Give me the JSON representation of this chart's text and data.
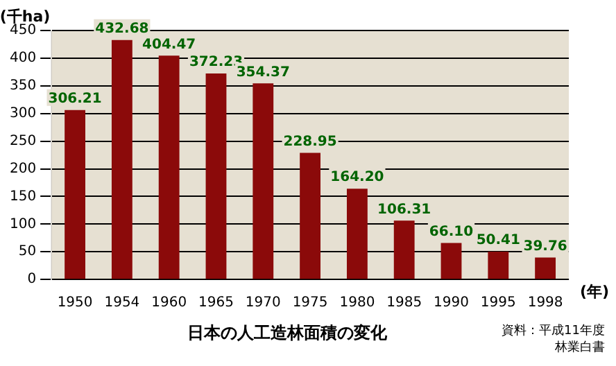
{
  "chart_data": {
    "type": "bar",
    "title": "日本の人工造林面積の変化",
    "ylabel": "(千ha)",
    "xlabel": "(年)",
    "annotations": [
      "資料：平成11年度",
      "林業白書"
    ],
    "categories": [
      "1950",
      "1954",
      "1960",
      "1965",
      "1970",
      "1975",
      "1980",
      "1985",
      "1990",
      "1995",
      "1998"
    ],
    "values": [
      306.21,
      432.68,
      404.47,
      372.23,
      354.37,
      228.95,
      164.2,
      106.31,
      66.1,
      50.41,
      39.76
    ],
    "value_labels": [
      "306.21",
      "432.68",
      "404.47",
      "372.23",
      "354.37",
      "228.95",
      "164.20",
      "106.31",
      "66.10",
      "50.41",
      "39.76"
    ],
    "color": "#8b0a0a",
    "ylim": [
      0,
      450
    ],
    "yticks": [
      0,
      50,
      100,
      150,
      200,
      250,
      300,
      350,
      400,
      450
    ],
    "grid": "y",
    "legend": false
  }
}
